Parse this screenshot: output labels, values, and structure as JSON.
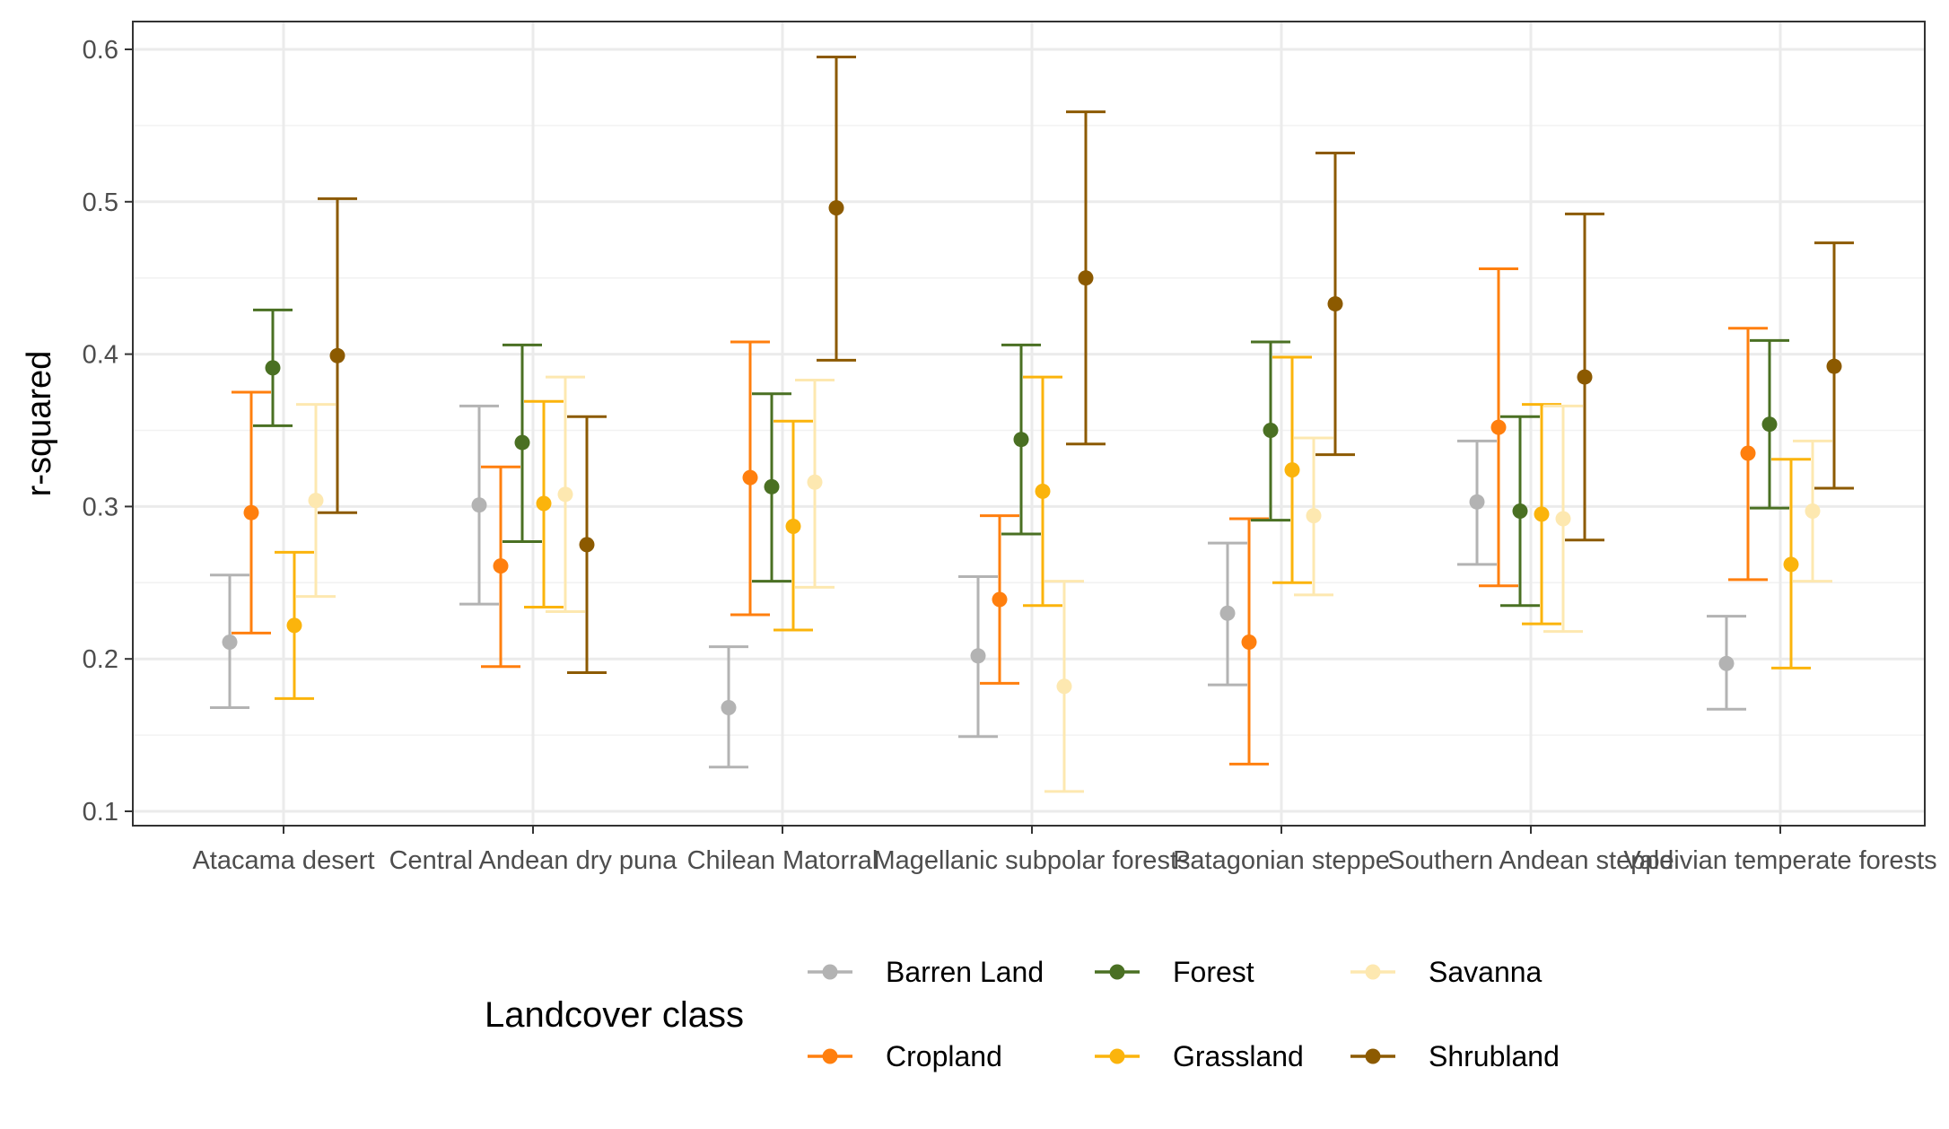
{
  "chart_data": {
    "type": "scatter",
    "variant": "point-with-errorbars (dodged)",
    "xlabel": "",
    "ylabel": "r-squared",
    "ylim": [
      0.09,
      0.61
    ],
    "yticks": [
      0.1,
      0.2,
      0.3,
      0.4,
      0.5,
      0.6
    ],
    "ytick_labels": [
      "0.1",
      "0.2",
      "0.3",
      "0.4",
      "0.5",
      "0.6"
    ],
    "grid": true,
    "legend_position": "bottom",
    "legend_title": "Landcover class",
    "categories": [
      "Atacama desert",
      "Central Andean dry puna",
      "Chilean Matorral",
      "Magellanic subpolar forests",
      "Patagonian steppe",
      "Southern Andean steppe",
      "Valdivian temperate forests"
    ],
    "series": [
      {
        "name": "Barren Land",
        "color": "#b3b3b3",
        "values": [
          0.211,
          0.301,
          0.168,
          0.202,
          0.23,
          0.303,
          0.197
        ],
        "lower": [
          0.168,
          0.236,
          0.129,
          0.149,
          0.183,
          0.262,
          0.167
        ],
        "upper": [
          0.255,
          0.366,
          0.208,
          0.254,
          0.276,
          0.343,
          0.228
        ]
      },
      {
        "name": "Cropland",
        "color": "#ff7f0e",
        "values": [
          0.296,
          0.261,
          0.319,
          0.239,
          0.211,
          0.352,
          0.335
        ],
        "lower": [
          0.217,
          0.195,
          0.229,
          0.184,
          0.131,
          0.248,
          0.252
        ],
        "upper": [
          0.375,
          0.326,
          0.408,
          0.294,
          0.292,
          0.456,
          0.417
        ]
      },
      {
        "name": "Forest",
        "color": "#4a7023",
        "values": [
          0.391,
          0.342,
          0.313,
          0.344,
          0.35,
          0.297,
          0.354
        ],
        "lower": [
          0.353,
          0.277,
          0.251,
          0.282,
          0.291,
          0.235,
          0.299
        ],
        "upper": [
          0.429,
          0.406,
          0.374,
          0.406,
          0.408,
          0.359,
          0.409
        ]
      },
      {
        "name": "Grassland",
        "color": "#fbb40c",
        "values": [
          0.222,
          0.302,
          0.287,
          0.31,
          0.324,
          0.295,
          0.262
        ],
        "lower": [
          0.174,
          0.234,
          0.219,
          0.235,
          0.25,
          0.223,
          0.194
        ],
        "upper": [
          0.27,
          0.369,
          0.356,
          0.385,
          0.398,
          0.367,
          0.331
        ]
      },
      {
        "name": "Savanna",
        "color": "#fde8b0",
        "values": [
          0.304,
          0.308,
          0.316,
          0.182,
          0.294,
          0.292,
          0.297
        ],
        "lower": [
          0.241,
          0.231,
          0.247,
          0.113,
          0.242,
          0.218,
          0.251
        ],
        "upper": [
          0.367,
          0.385,
          0.383,
          0.251,
          0.345,
          0.366,
          0.343
        ]
      },
      {
        "name": "Shrubland",
        "color": "#8c5a00",
        "values": [
          0.399,
          0.275,
          0.496,
          0.45,
          0.433,
          0.385,
          0.392
        ],
        "lower": [
          0.296,
          0.191,
          0.396,
          0.341,
          0.334,
          0.278,
          0.312
        ],
        "upper": [
          0.502,
          0.359,
          0.595,
          0.559,
          0.532,
          0.492,
          0.473
        ]
      }
    ]
  }
}
